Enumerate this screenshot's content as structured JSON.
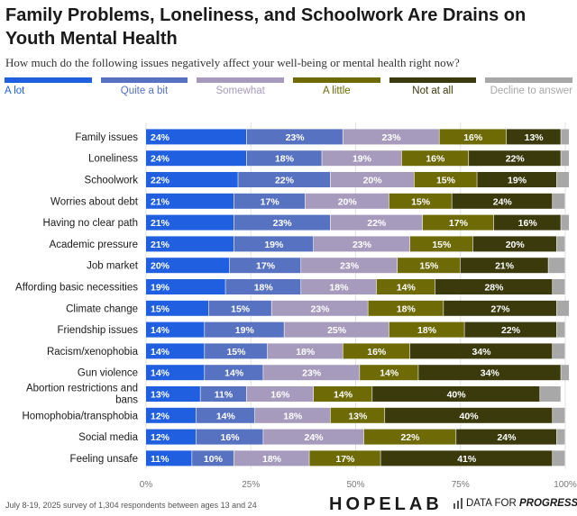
{
  "title": "Family Problems, Loneliness, and Schoolwork Are Drains on Youth Mental Health",
  "subtitle": "How much do the following issues negatively affect your well-being or mental health right now?",
  "footnote": "July 8-19, 2025 survey of 1,304 respondents between ages 13 and 24",
  "brand": {
    "hopelab": "HOPELAB",
    "dfp_prefix": "DATA FOR ",
    "dfp_emph": "PROGRESS"
  },
  "colors": {
    "A lot": "#1f5fe0",
    "Quite a bit": "#5872c2",
    "Somewhat": "#a79bbd",
    "A little": "#6e6a05",
    "Not at all": "#3b3a0d",
    "Decline to answer": "#a8a8a8"
  },
  "chart_data": {
    "type": "bar",
    "orientation": "horizontal",
    "stacked": true,
    "xlim": [
      0,
      100
    ],
    "x_ticks": [
      "0%",
      "25%",
      "50%",
      "75%",
      "100%"
    ],
    "categories": [
      "Family issues",
      "Loneliness",
      "Schoolwork",
      "Worries about debt",
      "Having no clear path",
      "Academic pressure",
      "Job market",
      "Affording basic necessities",
      "Climate change",
      "Friendship issues",
      "Racism/xenophobia",
      "Gun violence",
      "Abortion restrictions and bans",
      "Homophobia/transphobia",
      "Social media",
      "Feeling unsafe"
    ],
    "series": [
      {
        "name": "A lot",
        "values": [
          24,
          24,
          22,
          21,
          21,
          21,
          20,
          19,
          15,
          14,
          14,
          14,
          13,
          12,
          12,
          11
        ]
      },
      {
        "name": "Quite a bit",
        "values": [
          23,
          18,
          22,
          17,
          23,
          19,
          17,
          18,
          15,
          19,
          15,
          14,
          11,
          14,
          16,
          10
        ]
      },
      {
        "name": "Somewhat",
        "values": [
          23,
          19,
          20,
          20,
          22,
          23,
          23,
          18,
          23,
          25,
          18,
          23,
          16,
          18,
          24,
          18
        ]
      },
      {
        "name": "A little",
        "values": [
          16,
          16,
          15,
          15,
          17,
          15,
          15,
          14,
          18,
          18,
          16,
          14,
          14,
          13,
          22,
          17
        ]
      },
      {
        "name": "Not at all",
        "values": [
          13,
          22,
          19,
          24,
          16,
          20,
          21,
          28,
          27,
          22,
          34,
          34,
          40,
          40,
          24,
          41
        ]
      },
      {
        "name": "Decline to answer",
        "values": [
          2,
          2,
          3,
          3,
          2,
          2,
          4,
          3,
          3,
          2,
          3,
          2,
          5,
          3,
          2,
          3
        ]
      }
    ],
    "legend_position": "top",
    "grid": true
  }
}
